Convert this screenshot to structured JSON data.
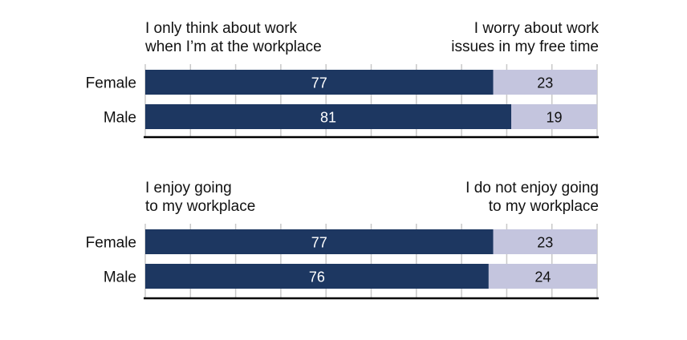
{
  "colors": {
    "primary": "#1d3761",
    "secondary": "#c4c5de",
    "grid": "#c8c8c8",
    "axis": "#000000"
  },
  "chart_data": [
    {
      "type": "bar",
      "stacked": true,
      "orientation": "horizontal",
      "left_label": "I only think about work when I’m at the workplace",
      "left_label_lines": [
        "I only think about work",
        "when I’m at the workplace"
      ],
      "right_label_lines": [
        "I worry about work",
        "issues in my free time"
      ],
      "categories": [
        "Female",
        "Male"
      ],
      "series": [
        {
          "values": [
            77,
            81
          ]
        },
        {
          "values": [
            23,
            19
          ]
        }
      ],
      "xlim": [
        0,
        100
      ],
      "grid": true
    },
    {
      "type": "bar",
      "stacked": true,
      "orientation": "horizontal",
      "left_label_lines": [
        "I enjoy going",
        "to my workplace"
      ],
      "right_label_lines": [
        "I do not enjoy going",
        "to my workplace"
      ],
      "categories": [
        "Female",
        "Male"
      ],
      "series": [
        {
          "values": [
            77,
            76
          ]
        },
        {
          "values": [
            23,
            24
          ]
        }
      ],
      "xlim": [
        0,
        100
      ],
      "grid": true
    }
  ]
}
